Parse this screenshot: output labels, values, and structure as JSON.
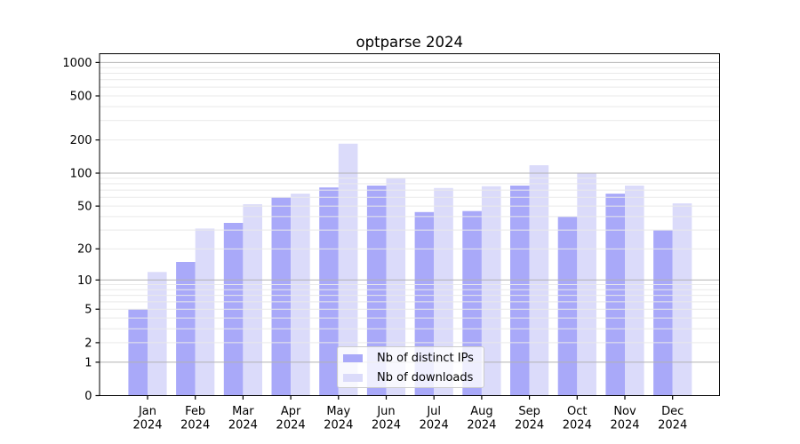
{
  "chart_data": {
    "type": "bar",
    "title": "optparse 2024",
    "categories": [
      "Jan",
      "Feb",
      "Mar",
      "Apr",
      "May",
      "Jun",
      "Jul",
      "Aug",
      "Sep",
      "Oct",
      "Nov",
      "Dec"
    ],
    "x_year_label": "2024",
    "series": [
      {
        "key": "distinct-ips",
        "name": "Nb of distinct IPs",
        "color": "#a9a9f9",
        "values": [
          5,
          15,
          35,
          60,
          74,
          77,
          44,
          45,
          77,
          40,
          65,
          30
        ]
      },
      {
        "key": "downloads",
        "name": "Nb of downloads",
        "color": "#dbdbfa",
        "values": [
          12,
          31,
          52,
          65,
          185,
          90,
          73,
          76,
          118,
          100,
          77,
          53
        ]
      }
    ],
    "xlabel": "",
    "ylabel": "",
    "y_scale": "log10(1+v)",
    "ylim": [
      0,
      1250
    ],
    "y_ticks": [
      0,
      1,
      2,
      5,
      10,
      20,
      50,
      100,
      200,
      500,
      1000
    ],
    "y_major_gridlines": [
      1,
      10,
      100,
      1000
    ],
    "y_minor_gridlines": [
      2,
      3,
      4,
      5,
      6,
      7,
      8,
      9,
      20,
      30,
      40,
      50,
      60,
      70,
      80,
      90,
      200,
      300,
      400,
      500,
      600,
      700,
      800,
      900
    ],
    "grid": "on",
    "legend_position": "lower center"
  },
  "colors": {
    "background": "#ffffff",
    "spine": "#000000",
    "major_grid": "#b2b2b2",
    "minor_grid": "#e9e9e9",
    "text": "#000000"
  }
}
